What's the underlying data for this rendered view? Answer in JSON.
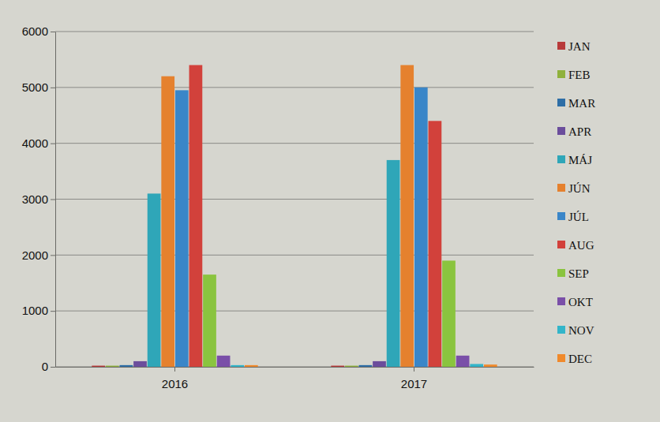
{
  "chart_data": {
    "type": "bar",
    "categories": [
      "2016",
      "2017"
    ],
    "series": [
      {
        "name": "JAN",
        "color": "#b83a3a",
        "values": [
          20,
          20
        ]
      },
      {
        "name": "FEB",
        "color": "#8fb13c",
        "values": [
          20,
          20
        ]
      },
      {
        "name": "MAR",
        "color": "#2e6ea6",
        "values": [
          30,
          30
        ]
      },
      {
        "name": "APR",
        "color": "#6b4d9c",
        "values": [
          100,
          100
        ]
      },
      {
        "name": "MÁJ",
        "color": "#2fa6b8",
        "values": [
          3100,
          3700
        ]
      },
      {
        "name": "JÚN",
        "color": "#e5812e",
        "values": [
          5200,
          5400
        ]
      },
      {
        "name": "JÚL",
        "color": "#3a86c8",
        "values": [
          4950,
          5000
        ]
      },
      {
        "name": "AUG",
        "color": "#d2413b",
        "values": [
          5400,
          4400
        ]
      },
      {
        "name": "SEP",
        "color": "#8ac43f",
        "values": [
          1650,
          1900
        ]
      },
      {
        "name": "OKT",
        "color": "#7a4fa8",
        "values": [
          200,
          200
        ]
      },
      {
        "name": "NOV",
        "color": "#33b5c9",
        "values": [
          30,
          50
        ]
      },
      {
        "name": "DEC",
        "color": "#f08a2c",
        "values": [
          30,
          40
        ]
      }
    ],
    "ylim": [
      0,
      6000
    ],
    "yticks": [
      0,
      1000,
      2000,
      3000,
      4000,
      5000,
      6000
    ],
    "grid": true,
    "legend": "right"
  }
}
